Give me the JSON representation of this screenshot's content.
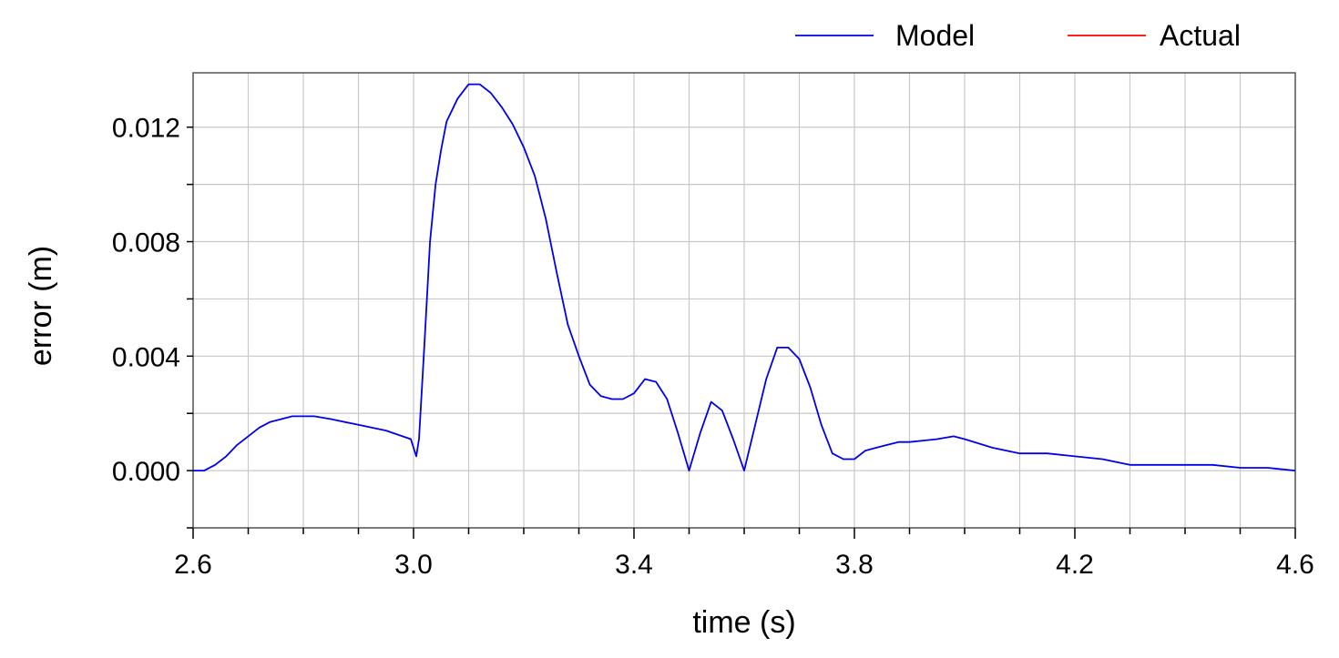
{
  "chart_data": {
    "type": "line",
    "xlabel": "time (s)",
    "ylabel": "error (m)",
    "xlim": [
      2.6,
      4.6
    ],
    "ylim": [
      -0.002,
      0.0139
    ],
    "x_ticks": [
      2.6,
      3.0,
      3.4,
      3.8,
      4.2,
      4.6
    ],
    "x_tick_labels": [
      "2.6",
      "3.0",
      "3.4",
      "3.8",
      "4.2",
      "4.6"
    ],
    "y_ticks": [
      0.0,
      0.004,
      0.008,
      0.012
    ],
    "y_tick_labels": [
      "0.000",
      "0.004",
      "0.008",
      "0.012"
    ],
    "x_minor_step": 0.1,
    "y_minor_step": 0.002,
    "grid": true,
    "legend_position": "top-right",
    "series": [
      {
        "name": "Model",
        "color": "#0000ee",
        "x": [
          2.6,
          2.62,
          2.64,
          2.66,
          2.68,
          2.7,
          2.72,
          2.74,
          2.76,
          2.78,
          2.8,
          2.82,
          2.85,
          2.9,
          2.95,
          2.995,
          3.005,
          3.01,
          3.02,
          3.03,
          3.04,
          3.05,
          3.06,
          3.08,
          3.1,
          3.12,
          3.14,
          3.16,
          3.18,
          3.2,
          3.22,
          3.24,
          3.26,
          3.28,
          3.3,
          3.32,
          3.34,
          3.36,
          3.38,
          3.4,
          3.42,
          3.44,
          3.46,
          3.48,
          3.5,
          3.52,
          3.54,
          3.56,
          3.58,
          3.6,
          3.62,
          3.64,
          3.66,
          3.68,
          3.7,
          3.72,
          3.74,
          3.76,
          3.78,
          3.8,
          3.82,
          3.84,
          3.86,
          3.88,
          3.9,
          3.95,
          3.98,
          4.0,
          4.05,
          4.1,
          4.12,
          4.15,
          4.2,
          4.25,
          4.3,
          4.35,
          4.4,
          4.45,
          4.5,
          4.55,
          4.6
        ],
        "values": [
          0.0,
          0.0,
          0.0002,
          0.0005,
          0.0009,
          0.0012,
          0.0015,
          0.0017,
          0.0018,
          0.0019,
          0.0019,
          0.0019,
          0.0018,
          0.0016,
          0.0014,
          0.0011,
          0.0005,
          0.0011,
          0.0045,
          0.008,
          0.01,
          0.0112,
          0.0122,
          0.013,
          0.0135,
          0.0135,
          0.0132,
          0.0127,
          0.0121,
          0.0113,
          0.0103,
          0.0088,
          0.0069,
          0.0051,
          0.004,
          0.003,
          0.0026,
          0.0025,
          0.0025,
          0.0027,
          0.0032,
          0.0031,
          0.0025,
          0.0013,
          0.0,
          0.0013,
          0.0024,
          0.0021,
          0.0011,
          0.0,
          0.0016,
          0.0032,
          0.0043,
          0.0043,
          0.0039,
          0.0029,
          0.0016,
          0.0006,
          0.0004,
          0.0004,
          0.0007,
          0.0008,
          0.0009,
          0.001,
          0.001,
          0.0011,
          0.0012,
          0.0011,
          0.0008,
          0.0006,
          0.0006,
          0.0006,
          0.0005,
          0.0004,
          0.0002,
          0.0002,
          0.0002,
          0.0002,
          0.0001,
          0.0001,
          0.0
        ]
      },
      {
        "name": "Actual",
        "color": "#ff0000",
        "x": [],
        "values": []
      }
    ]
  }
}
